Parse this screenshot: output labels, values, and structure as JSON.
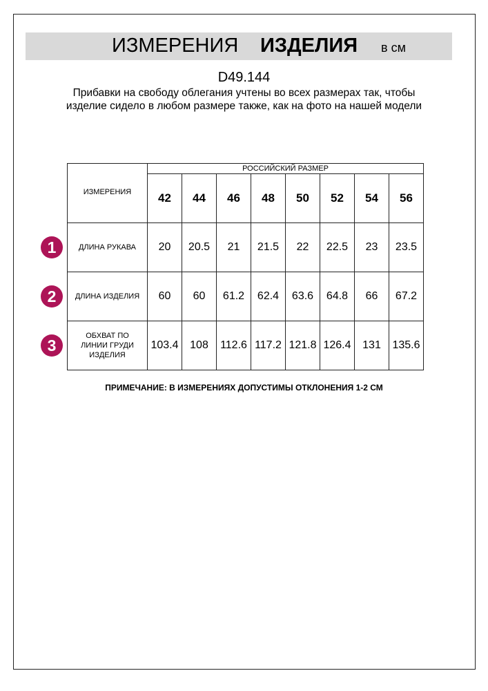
{
  "header": {
    "title_regular": "ИЗМЕРЕНИЯ",
    "title_bold": "ИЗДЕЛИЯ",
    "unit": "в см"
  },
  "product_code": "D49.144",
  "description": "Прибавки на свободу облегания учтены во всех размерах так, чтобы изделие сидело в любом размере также, как на фото на нашей модели",
  "table": {
    "measure_header": "ИЗМЕРЕНИЯ",
    "size_header": "РОССИЙСКИЙ РАЗМЕР",
    "sizes": [
      "42",
      "44",
      "46",
      "48",
      "50",
      "52",
      "54",
      "56"
    ],
    "rows": [
      {
        "num": "1",
        "label": "ДЛИНА РУКАВА",
        "values": [
          "20",
          "20.5",
          "21",
          "21.5",
          "22",
          "22.5",
          "23",
          "23.5"
        ]
      },
      {
        "num": "2",
        "label": "ДЛИНА ИЗДЕЛИЯ",
        "values": [
          "60",
          "60",
          "61.2",
          "62.4",
          "63.6",
          "64.8",
          "66",
          "67.2"
        ]
      },
      {
        "num": "3",
        "label": "ОБХВАТ ПО ЛИНИИ ГРУДИ ИЗДЕЛИЯ",
        "values": [
          "103.4",
          "108",
          "112.6",
          "117.2",
          "121.8",
          "126.4",
          "131",
          "135.6"
        ]
      }
    ]
  },
  "note": "ПРИМЕЧАНИЕ: В ИЗМЕРЕНИЯХ ДОПУСТИМЫ ОТКЛОНЕНИЯ 1-2 СМ",
  "colors": {
    "badge": "#ad1457",
    "banner": "#d9d9d9"
  }
}
